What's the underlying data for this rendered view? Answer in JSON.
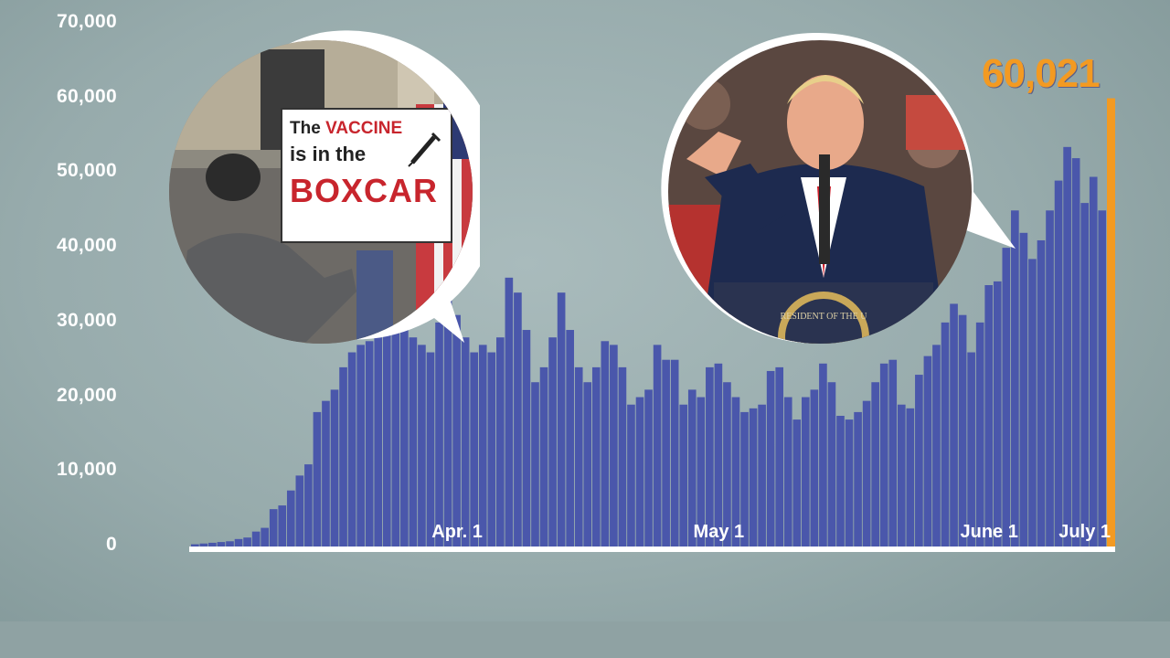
{
  "chart_data": {
    "type": "bar",
    "title": "",
    "xlabel": "",
    "ylabel": "",
    "ylim": [
      0,
      70000
    ],
    "y_ticks": [
      "70,000",
      "60,000",
      "50,000",
      "40,000",
      "30,000",
      "20,000",
      "10,000",
      "0"
    ],
    "y_tick_values": [
      70000,
      60000,
      50000,
      40000,
      30000,
      20000,
      10000,
      0
    ],
    "x_ticks": [
      {
        "label": "Apr. 1",
        "day_index": 30
      },
      {
        "label": "May 1",
        "day_index": 60
      },
      {
        "label": "June 1",
        "day_index": 91
      },
      {
        "label": "July 1",
        "day_index": 121
      }
    ],
    "series": [
      {
        "values": [
          300,
          400,
          500,
          600,
          700,
          1000,
          1200,
          2000,
          2500,
          5000,
          5500,
          7500,
          9500,
          11000,
          18000,
          19500,
          21000,
          24000,
          26000,
          27000,
          27500,
          28000,
          28500,
          29500,
          30000,
          28000,
          27000,
          26000,
          30000,
          33000,
          31000,
          28000,
          26000,
          27000,
          26000,
          28000,
          36000,
          34000,
          29000,
          22000,
          24000,
          28000,
          34000,
          29000,
          24000,
          22000,
          24000,
          27500,
          27000,
          24000,
          19000,
          20000,
          21000,
          27000,
          25000,
          25000,
          19000,
          21000,
          20000,
          24000,
          24500,
          22000,
          20000,
          18000,
          18500,
          19000,
          23500,
          24000,
          20000,
          17000,
          20000,
          21000,
          24500,
          22000,
          17500,
          17000,
          18000,
          19500,
          22000,
          24500,
          25000,
          19000,
          18500,
          23000,
          25500,
          27000,
          30000,
          32500,
          31000,
          26000,
          30000,
          35000,
          35500,
          40000,
          45000,
          42000,
          38500,
          41000,
          45000,
          49000,
          53500,
          52000,
          46000,
          49500,
          45000
        ]
      }
    ],
    "highlight": {
      "label": "60,021",
      "value": 60021,
      "color": "#f39a22"
    },
    "bar_color": "#4a57ab",
    "baseline_color": "#ffffff"
  },
  "insets": {
    "left": {
      "sign_line1_a": "The ",
      "sign_line1_b": "VACCINE",
      "sign_line2": "is in the",
      "sign_line3": "BOXCAR"
    },
    "right": {
      "seal_text": "RESIDENT OF THE U"
    }
  },
  "colors": {
    "background": "#a3b5b6",
    "bars": "#4a57ab",
    "highlight": "#f39a22"
  }
}
